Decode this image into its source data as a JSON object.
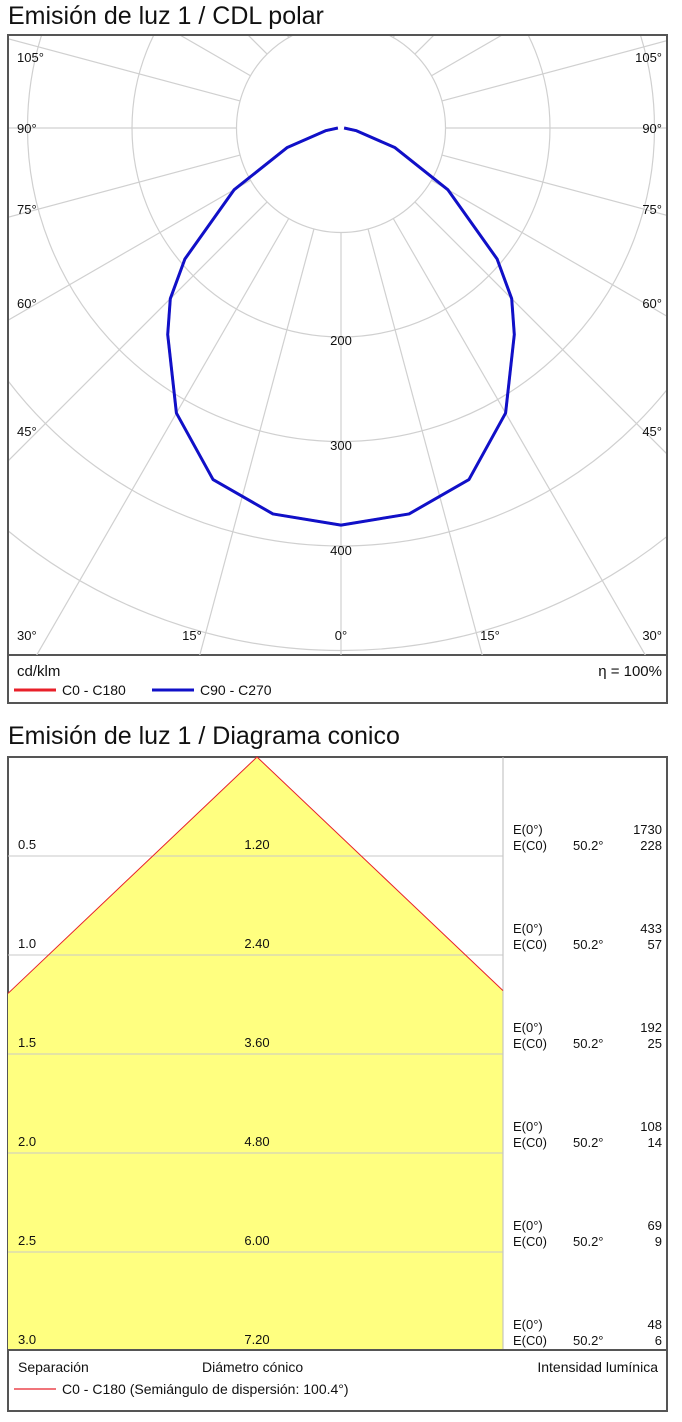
{
  "chart_data": [
    {
      "type": "polar",
      "title": "Emisión de luz 1 / CDL polar",
      "unit_label": "cd/klm",
      "efficiency_label": "η = 100%",
      "radial_ticks": [
        100,
        200,
        300,
        400,
        500
      ],
      "radial_tick_labels": [
        "200",
        "300",
        "400"
      ],
      "angle_labels_left": [
        "105°",
        "90°",
        "75°",
        "60°",
        "45°",
        "30°"
      ],
      "angle_labels_right": [
        "105°",
        "90°",
        "75°",
        "60°",
        "45°",
        "30°"
      ],
      "angle_labels_bottom": [
        "15°",
        "0°",
        "15°"
      ],
      "grid": true,
      "series": [
        {
          "name": "C0 - C180",
          "color": "#e8202a",
          "gamma": [
            0,
            10,
            20,
            30,
            40,
            45,
            50,
            60,
            70,
            80,
            90
          ],
          "values": [
            380,
            375,
            358,
            315,
            258,
            231,
            195,
            118,
            55,
            15,
            3
          ]
        },
        {
          "name": "C90 - C270",
          "color": "#1010c8",
          "gamma": [
            0,
            10,
            20,
            30,
            40,
            45,
            50,
            60,
            70,
            80,
            90
          ],
          "values": [
            380,
            375,
            358,
            315,
            258,
            231,
            195,
            118,
            55,
            15,
            3
          ]
        }
      ]
    },
    {
      "type": "cone",
      "title": "Emisión de luz 1 / Diagrama conico",
      "column_labels": {
        "separation": "Separación",
        "diameter": "Diámetro cónico",
        "intensity": "Intensidad lumínica"
      },
      "legend": "C0 - C180 (Semiángulo de dispersión: 100.4°)",
      "legend_color": "#e8202a",
      "fill_color": "#ffff80",
      "half_angle": 50.2,
      "rows": [
        {
          "h": "0.5",
          "d": "1.20",
          "e0_label": "E(0°)",
          "e0": "1730",
          "ec_label": "E(C0)",
          "angle": "50.2°",
          "ec": "228"
        },
        {
          "h": "1.0",
          "d": "2.40",
          "e0_label": "E(0°)",
          "e0": "433",
          "ec_label": "E(C0)",
          "angle": "50.2°",
          "ec": "57"
        },
        {
          "h": "1.5",
          "d": "3.60",
          "e0_label": "E(0°)",
          "e0": "192",
          "ec_label": "E(C0)",
          "angle": "50.2°",
          "ec": "25"
        },
        {
          "h": "2.0",
          "d": "4.80",
          "e0_label": "E(0°)",
          "e0": "108",
          "ec_label": "E(C0)",
          "angle": "50.2°",
          "ec": "14"
        },
        {
          "h": "2.5",
          "d": "6.00",
          "e0_label": "E(0°)",
          "e0": "69",
          "ec_label": "E(C0)",
          "angle": "50.2°",
          "ec": "9"
        },
        {
          "h": "3.0",
          "d": "7.20",
          "e0_label": "E(0°)",
          "e0": "48",
          "ec_label": "E(C0)",
          "angle": "50.2°",
          "ec": "6"
        }
      ]
    }
  ]
}
